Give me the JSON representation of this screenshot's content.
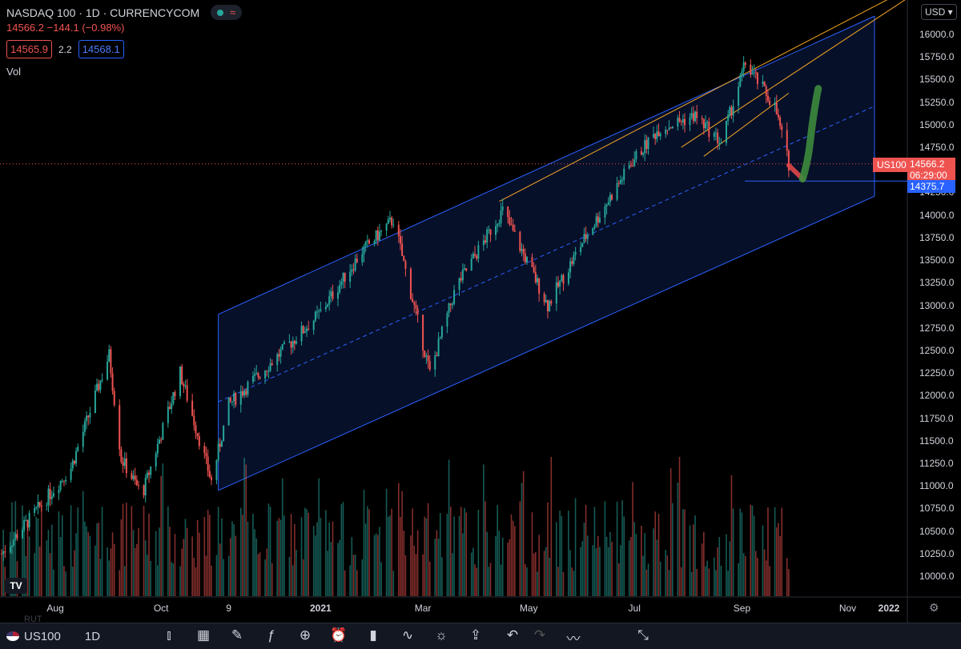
{
  "header": {
    "symbol_title": "NASDAQ 100 · 1D · CURRENCYCOM",
    "change_text": "14566.2 −144.1 (−0.98%)",
    "sell_price": "14565.9",
    "spread": "2.2",
    "buy_price": "14568.1",
    "volume_label": "Vol",
    "live_icon": "green-dot-icon",
    "indicator_icon": "wave-icon"
  },
  "currency_selector": "USD",
  "price_axis": {
    "labels": [
      "16000.0",
      "15750.0",
      "15500.0",
      "15250.0",
      "15000.0",
      "14750.0",
      "14500.0",
      "14250.0",
      "14000.0",
      "13750.0",
      "13500.0",
      "13250.0",
      "13000.0",
      "12750.0",
      "12500.0",
      "12250.0",
      "12000.0",
      "11750.0",
      "11500.0",
      "11250.0",
      "11000.0",
      "10750.0",
      "10500.0",
      "10250.0",
      "10000.0"
    ],
    "current_symbol_tag": "US100",
    "current_price_tag": "14566.2",
    "countdown_tag": "06:29:00",
    "level_tag": "14375.7"
  },
  "time_axis": [
    "Aug",
    "Oct",
    "9",
    "2021",
    "Mar",
    "May",
    "Jul",
    "Sep",
    "Nov",
    "2022"
  ],
  "toolbar": {
    "symbol": "US100",
    "interval": "1D",
    "icons": [
      "candles-icon",
      "compare-icon",
      "draw-icon",
      "fx-icon",
      "add-icon",
      "alert-icon",
      "bar-chart-icon",
      "replay-icon",
      "idea-icon",
      "share-icon",
      "undo-icon",
      "redo-icon",
      "trend-icon",
      "fullscreen-icon"
    ]
  },
  "ghost_text": "RUT",
  "colors": {
    "up": "#26a69a",
    "down": "#ef5350",
    "channel": "#2962ff",
    "orange": "#f5a623",
    "green_arrow": "#3d8b3d",
    "red_arrow": "#e04848"
  },
  "chart_data": {
    "type": "candlestick",
    "symbol": "NASDAQ 100",
    "interval": "1D",
    "ylim": [
      9850,
      16350
    ],
    "price_ticks": [
      10000,
      10250,
      10500,
      10750,
      11000,
      11250,
      11500,
      11750,
      12000,
      12250,
      12500,
      12750,
      13000,
      13250,
      13500,
      13750,
      14000,
      14250,
      14500,
      14750,
      15000,
      15250,
      15500,
      15750,
      16000
    ],
    "x_ticks": [
      "Aug",
      "Oct",
      "9",
      "2021",
      "Mar",
      "May",
      "Jul",
      "Sep",
      "Nov",
      "2022"
    ],
    "last_price": 14566.2,
    "horizontal_level": 14375.7,
    "price_path": [
      [
        "2020-07-01",
        10250
      ],
      [
        "2020-07-20",
        10700
      ],
      [
        "2020-08-10",
        11200
      ],
      [
        "2020-09-01",
        12450
      ],
      [
        "2020-09-08",
        11300
      ],
      [
        "2020-09-20",
        10900
      ],
      [
        "2020-10-12",
        12250
      ],
      [
        "2020-10-30",
        11050
      ],
      [
        "2020-11-09",
        11900
      ],
      [
        "2020-11-30",
        12300
      ],
      [
        "2020-12-31",
        12900
      ],
      [
        "2021-01-25",
        13600
      ],
      [
        "2021-02-12",
        13950
      ],
      [
        "2021-03-05",
        12250
      ],
      [
        "2021-03-20",
        13200
      ],
      [
        "2021-04-16",
        14050
      ],
      [
        "2021-05-12",
        13000
      ],
      [
        "2021-06-01",
        13700
      ],
      [
        "2021-06-30",
        14600
      ],
      [
        "2021-07-15",
        14950
      ],
      [
        "2021-08-05",
        15100
      ],
      [
        "2021-08-20",
        14800
      ],
      [
        "2021-09-03",
        15680
      ],
      [
        "2021-09-20",
        15200
      ],
      [
        "2021-09-28",
        14566
      ]
    ],
    "regression_channel": {
      "start": "2020-11-03",
      "end": "2022-01-01",
      "upper": [
        12900,
        16600
      ],
      "middle": [
        11930,
        15600
      ],
      "lower": [
        10950,
        14600
      ]
    },
    "trend_lines_orange": [
      {
        "start": "2021-04-14",
        "end": "2022-01-01",
        "values": [
          14150,
          16500
        ]
      },
      {
        "start": "2021-07-28",
        "end": "2021-12-15",
        "values": [
          14750,
          16400
        ]
      },
      {
        "start": "2021-08-10",
        "end": "2021-09-28",
        "values": [
          14650,
          15350
        ]
      }
    ],
    "projection": [
      {
        "color": "red",
        "from": [
          "2021-09-28",
          14550
        ],
        "to": [
          "2021-10-06",
          14400
        ]
      },
      {
        "color": "green",
        "from": [
          "2021-10-06",
          14400
        ],
        "to": [
          "2021-10-15",
          15400
        ]
      }
    ]
  }
}
